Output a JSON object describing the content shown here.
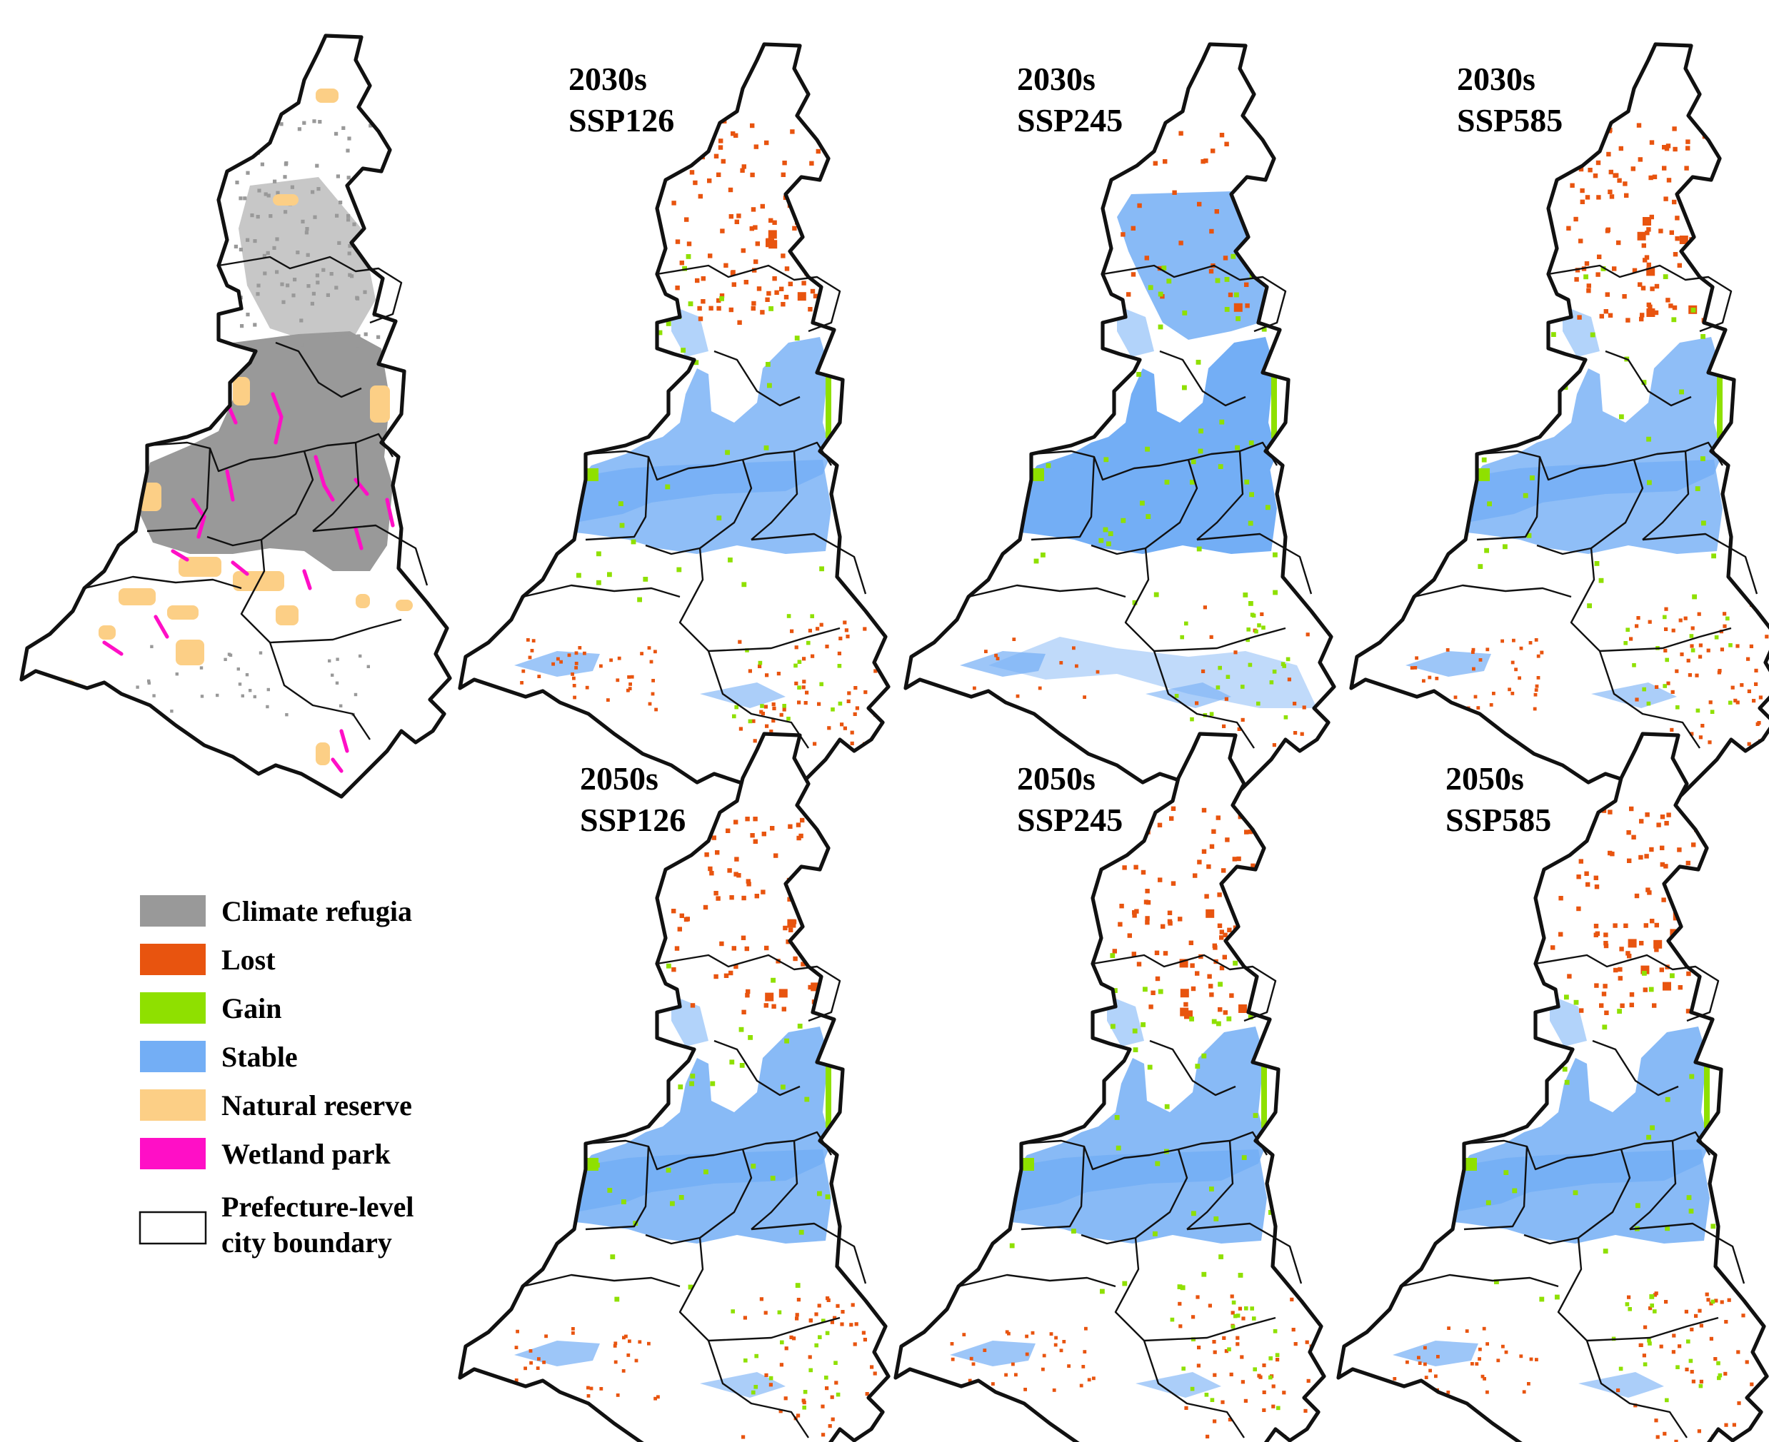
{
  "colors": {
    "climate_refugia": "#999999",
    "lost": "#e8540f",
    "gain": "#8fe000",
    "stable": "#73aef5",
    "natural_reserve": "#fccf86",
    "wetland_park": "#ff0fc6",
    "boundary": "#111111"
  },
  "panels": [
    {
      "period": "",
      "scenario": "",
      "kind": "baseline"
    },
    {
      "period": "2030s",
      "scenario": "SSP126",
      "kind": "change",
      "stable": 0.8,
      "lost": 0.55,
      "gain": 0.5
    },
    {
      "period": "2030s",
      "scenario": "SSP245",
      "kind": "change",
      "stable": 1.0,
      "lost": 0.1,
      "gain": 0.75
    },
    {
      "period": "2030s",
      "scenario": "SSP585",
      "kind": "change",
      "stable": 0.8,
      "lost": 0.55,
      "gain": 0.5
    },
    {
      "period": "2050s",
      "scenario": "SSP126",
      "kind": "change",
      "stable": 0.85,
      "lost": 0.45,
      "gain": 0.5
    },
    {
      "period": "2050s",
      "scenario": "SSP245",
      "kind": "change",
      "stable": 0.85,
      "lost": 0.45,
      "gain": 0.55
    },
    {
      "period": "2050s",
      "scenario": "SSP585",
      "kind": "change",
      "stable": 0.85,
      "lost": 0.45,
      "gain": 0.5
    }
  ],
  "legend": [
    {
      "label": "Climate refugia",
      "color_key": "climate_refugia",
      "icon": "filled-swatch"
    },
    {
      "label": "Lost",
      "color_key": "lost",
      "icon": "filled-swatch"
    },
    {
      "label": "Gain",
      "color_key": "gain",
      "icon": "filled-swatch"
    },
    {
      "label": "Stable",
      "color_key": "stable",
      "icon": "filled-swatch"
    },
    {
      "label": "Natural reserve",
      "color_key": "natural_reserve",
      "icon": "filled-swatch"
    },
    {
      "label": "Wetland park",
      "color_key": "wetland_park",
      "icon": "filled-swatch"
    },
    {
      "label": "Prefecture-level",
      "label2": "city boundary",
      "color_key": "boundary",
      "icon": "outline-swatch"
    }
  ]
}
